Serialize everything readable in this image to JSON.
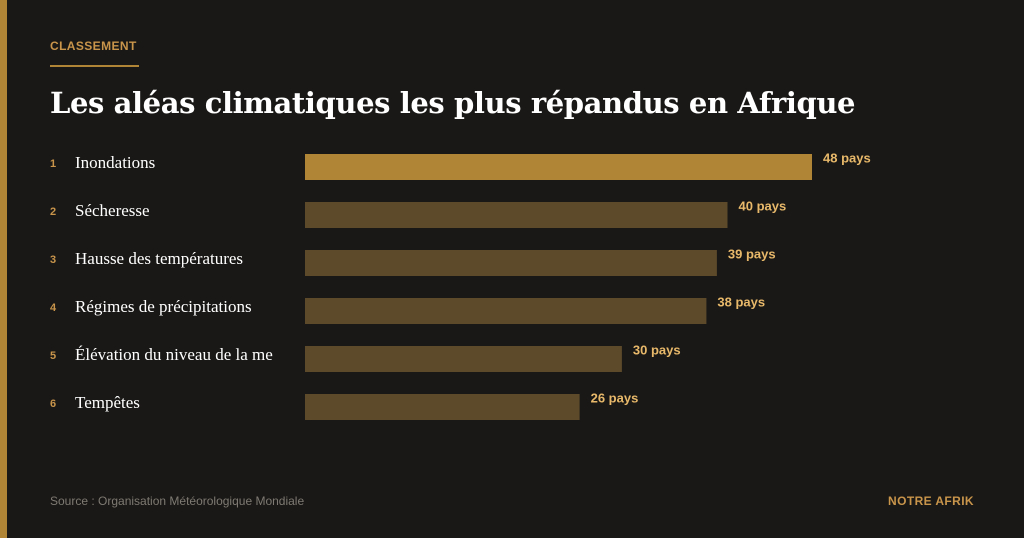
{
  "eyebrow": "CLASSEMENT",
  "title": "Les aléas climatiques les plus répandus en Afrique",
  "footer": {
    "source": "Source : Organisation Météorologique Mondiale",
    "brand": "NOTRE AFRIK"
  },
  "colors": {
    "background": "#1a1816",
    "accent": "#b08535",
    "bar_highlight": "#b08535",
    "bar_default": "#5c4a2b",
    "value_text": "#e8b96a"
  },
  "chart_data": {
    "type": "bar",
    "orientation": "horizontal",
    "ranks": [
      "1",
      "2",
      "3",
      "4",
      "5",
      "6"
    ],
    "categories": [
      "Inondations",
      "Sécheresse",
      "Hausse des températures",
      "Régimes de précipitations",
      "Élévation du niveau de la me",
      "Tempêtes"
    ],
    "values": [
      48,
      40,
      39,
      38,
      30,
      26
    ],
    "value_labels": [
      "48 pays",
      "40 pays",
      "39 pays",
      "38 pays",
      "30 pays",
      "26 pays"
    ],
    "highlight_index": 0,
    "xlim": [
      0,
      48
    ]
  }
}
